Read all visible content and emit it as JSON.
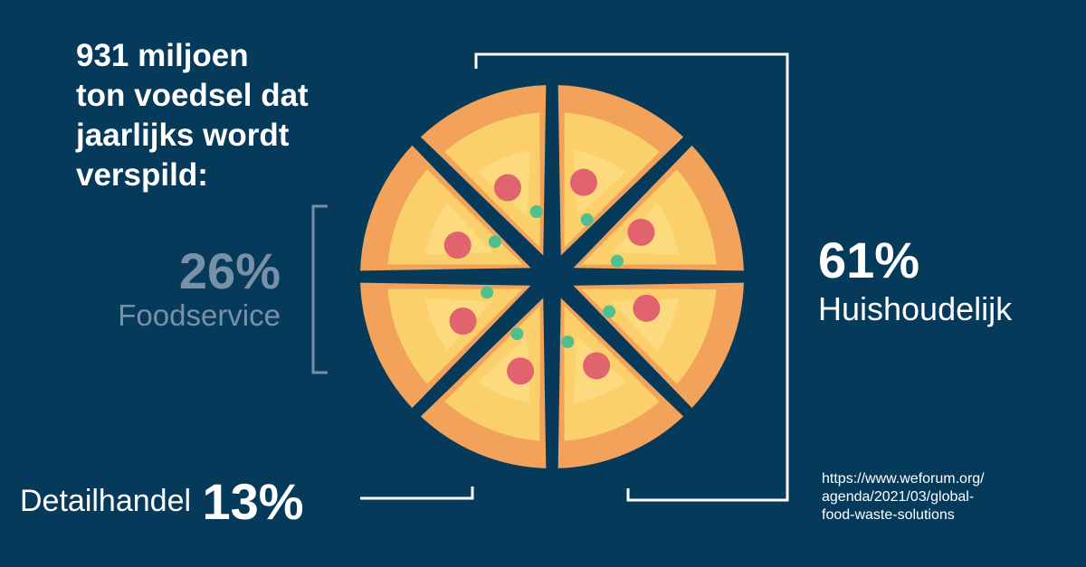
{
  "title": {
    "lines": [
      "931 miljoen",
      "ton voedsel dat",
      "jaarlijks wordt",
      "verspild:"
    ]
  },
  "stats": {
    "foodservice": {
      "pct": "26%",
      "label": "Foodservice"
    },
    "household": {
      "pct": "61%",
      "label": "Huishoudelijk"
    },
    "retail": {
      "pct": "13%",
      "label": "Detailhandel"
    }
  },
  "source": {
    "lines": [
      "https://www.weforum.org/",
      "agenda/2021/03/global-",
      "food-waste-solutions"
    ]
  },
  "chart_data": {
    "type": "pie",
    "title": "931 miljoen ton voedsel dat jaarlijks wordt verspild:",
    "categories": [
      "Huishoudelijk",
      "Foodservice",
      "Detailhandel"
    ],
    "values": [
      61,
      26,
      13
    ],
    "unit": "%",
    "slices_drawn": 8,
    "colors": {
      "background": "#063a5b",
      "crust": "#f2a25a",
      "cheese": "#fbd06a",
      "cheese_light": "#fde18b",
      "pepperoni": "#e0636d",
      "herb": "#4ebf8f",
      "bracket": "#ffffff",
      "bracket_muted": "#7792a7",
      "text_muted": "#7792a7"
    }
  }
}
